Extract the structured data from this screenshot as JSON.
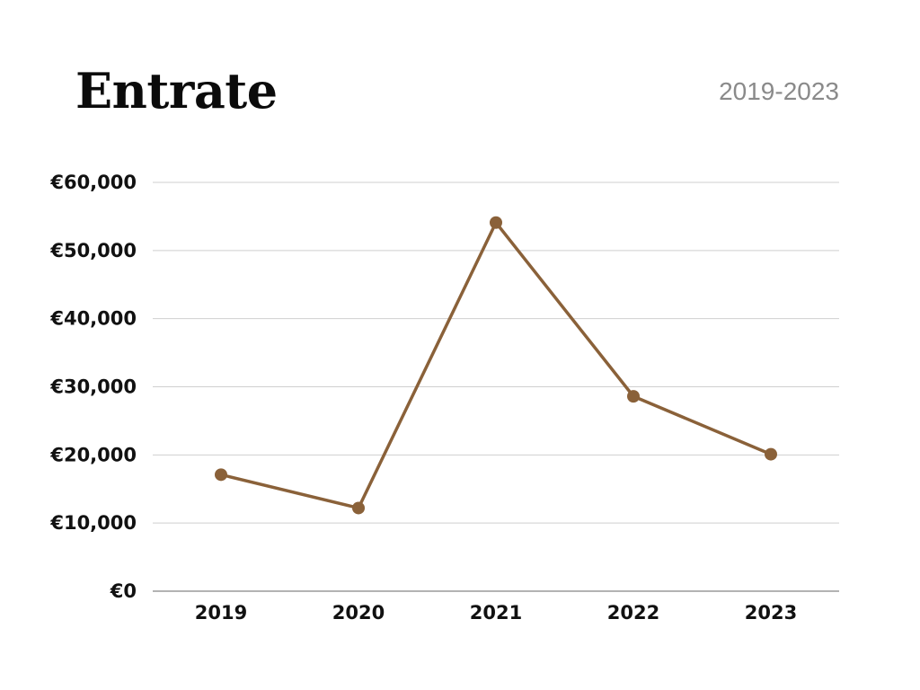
{
  "chart_data": {
    "type": "line",
    "title": "Entrate",
    "subtitle": "2019-2023",
    "xlabel": "",
    "ylabel": "",
    "categories": [
      "2019",
      "2020",
      "2021",
      "2022",
      "2023"
    ],
    "series": [
      {
        "values": [
          17100,
          12200,
          54100,
          28600,
          20100
        ]
      }
    ],
    "ylim": [
      0,
      60000
    ],
    "yticks": [
      0,
      10000,
      20000,
      30000,
      40000,
      50000,
      60000
    ],
    "ytick_labels": [
      "€0",
      "€10,000",
      "€20,000",
      "€30,000",
      "€40,000",
      "€50,000",
      "€60,000"
    ],
    "grid": true,
    "legend": "none",
    "colors": {
      "line": "#8a6139",
      "grid": "#cfcfcf",
      "axis": "#9a9a9a",
      "title": "#0b0b0b",
      "subtitle": "#8a8a8a"
    }
  }
}
